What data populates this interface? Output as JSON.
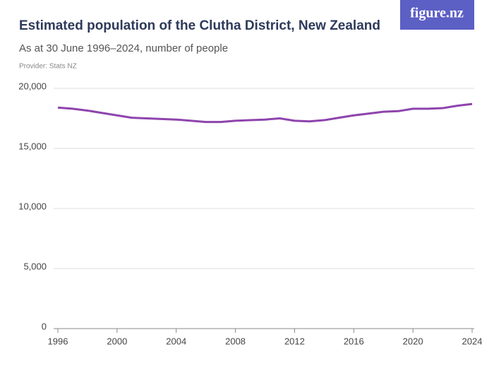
{
  "chart_data": {
    "type": "line",
    "title": "Estimated population of the Clutha District, New Zealand",
    "subtitle": "As at 30 June 1996–2024, number of people",
    "provider": "Provider: Stats NZ",
    "logo": "figure.nz",
    "x": [
      1996,
      1997,
      1998,
      1999,
      2000,
      2001,
      2002,
      2003,
      2004,
      2005,
      2006,
      2007,
      2008,
      2009,
      2010,
      2011,
      2012,
      2013,
      2014,
      2015,
      2016,
      2017,
      2018,
      2019,
      2020,
      2021,
      2022,
      2023,
      2024
    ],
    "series": [
      {
        "color": "#8e44ad",
        "values": [
          18400,
          18300,
          18150,
          17950,
          17750,
          17550,
          17500,
          17450,
          17400,
          17300,
          17200,
          17200,
          17300,
          17350,
          17400,
          17500,
          17300,
          17250,
          17350,
          17550,
          17750,
          17900,
          18050,
          18100,
          18300,
          18300,
          18350,
          18550,
          18700
        ]
      }
    ],
    "xlim": [
      1996,
      2024
    ],
    "xticks": [
      1996,
      2000,
      2004,
      2008,
      2012,
      2016,
      2020,
      2024
    ],
    "ylim": [
      0,
      20000
    ],
    "yticks": [
      0,
      {
        "value": 5000,
        "label": "5,000"
      },
      {
        "value": 10000,
        "label": "10,000"
      },
      {
        "value": 15000,
        "label": "15,000"
      },
      {
        "value": 20000,
        "label": "20,000"
      }
    ],
    "grid": true
  }
}
